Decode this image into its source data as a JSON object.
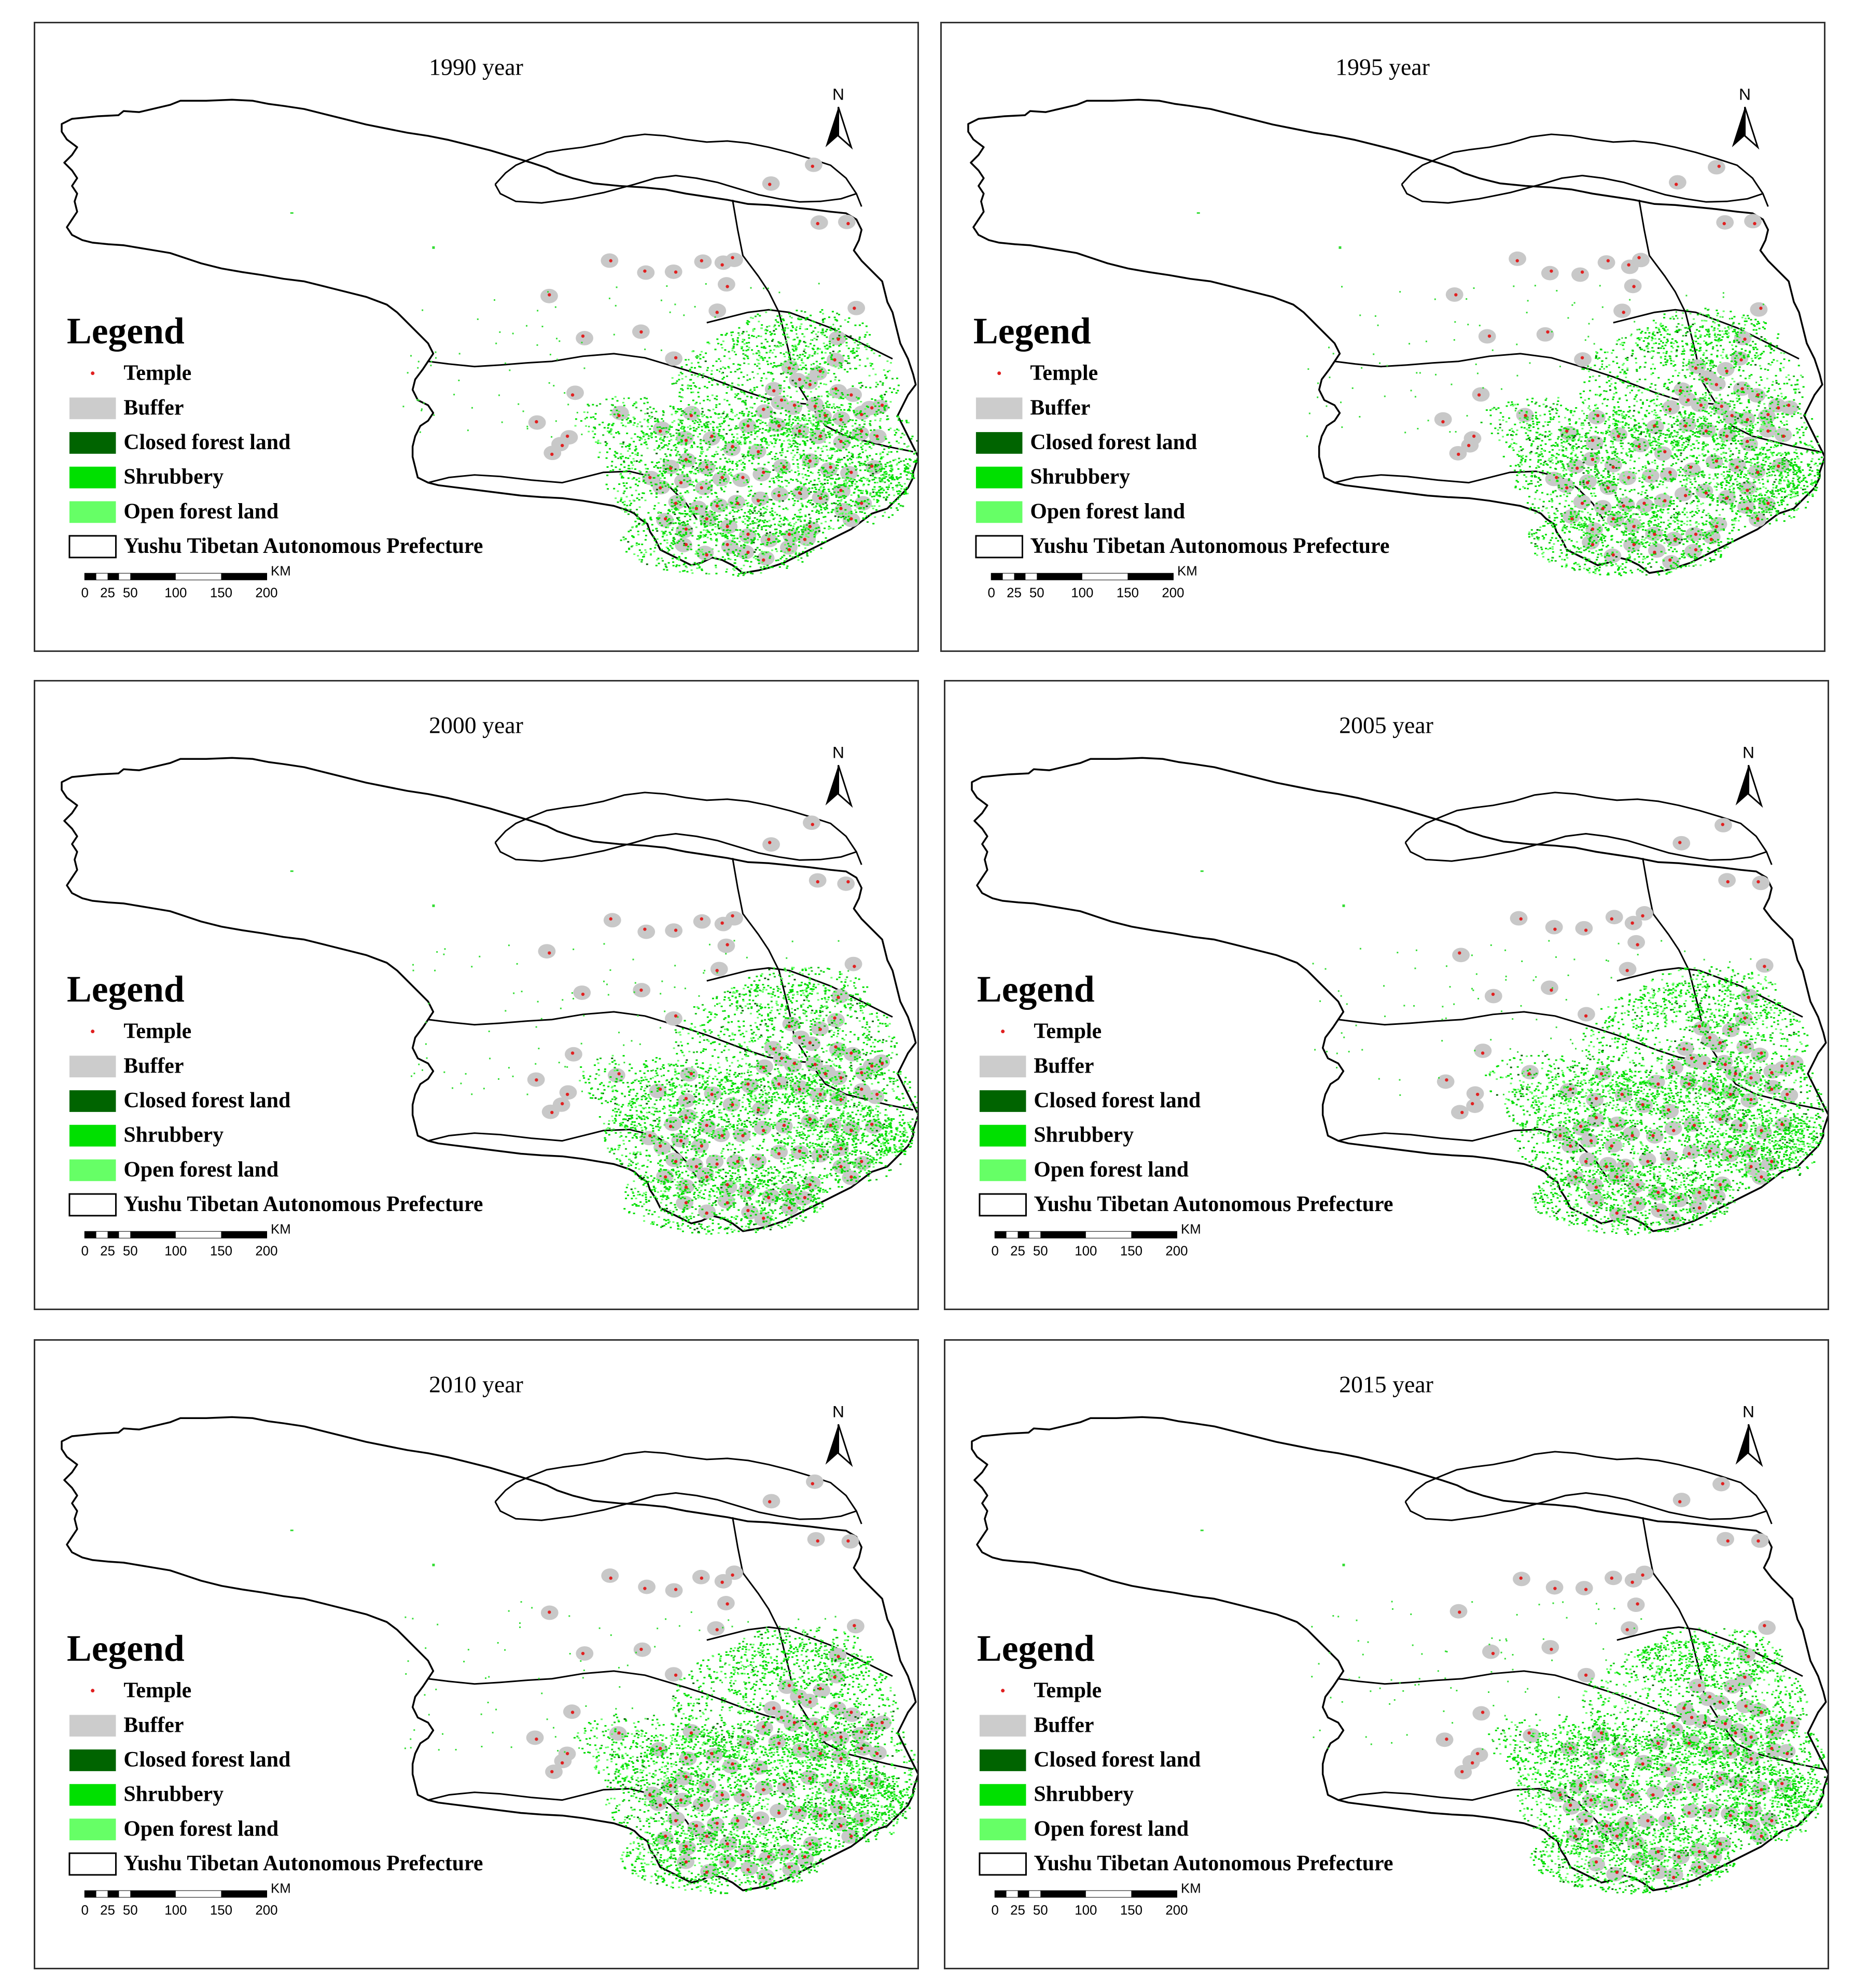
{
  "panels": [
    {
      "title": "1990 year"
    },
    {
      "title": "1995 year"
    },
    {
      "title": "2000 year"
    },
    {
      "title": "2005 year"
    },
    {
      "title": "2010 year"
    },
    {
      "title": "2015 year"
    }
  ],
  "legend": {
    "title": "Legend",
    "items": [
      {
        "label": "Temple",
        "color": "#e02020",
        "symbol": "dot"
      },
      {
        "label": "Buffer",
        "color": "#cccccc",
        "symbol": "box"
      },
      {
        "label": "Closed forest  land",
        "color": "#006400",
        "symbol": "box"
      },
      {
        "label": "Shrubbery",
        "color": "#00e000",
        "symbol": "box"
      },
      {
        "label": "Open forest land",
        "color": "#66ff66",
        "symbol": "box"
      },
      {
        "label": "Yushu Tibetan Autonomous Prefecture",
        "color": "#ffffff",
        "symbol": "outline"
      }
    ]
  },
  "north_arrow": {
    "label": "N"
  },
  "scale_bar": {
    "ticks": [
      "0",
      "25",
      "50",
      "100",
      "150",
      "200"
    ],
    "unit": "KM"
  }
}
